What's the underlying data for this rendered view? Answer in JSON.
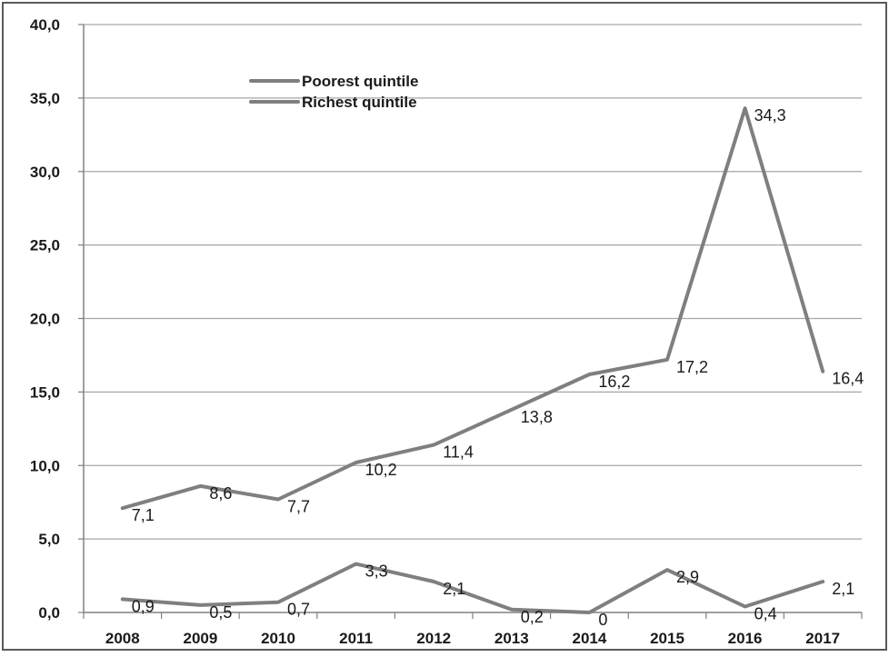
{
  "chart_data": {
    "type": "line",
    "categories": [
      "2008",
      "2009",
      "2010",
      "2011",
      "2012",
      "2013",
      "2014",
      "2015",
      "2016",
      "2017"
    ],
    "y_tick_labels": [
      "0,0",
      "5,0",
      "10,0",
      "15,0",
      "20,0",
      "25,0",
      "30,0",
      "35,0",
      "40,0"
    ],
    "ylim": [
      0,
      40
    ],
    "y_tick_step": 5,
    "grid": "horizontal",
    "legend_position": "top-left",
    "colors": {
      "line": "#7f7f7f",
      "grid": "#a6a6a6",
      "axis": "#808080",
      "border": "#5a5a5a"
    },
    "series": [
      {
        "name": "Poorest quintile",
        "values": [
          7.1,
          8.6,
          7.7,
          10.2,
          11.4,
          13.8,
          16.2,
          17.2,
          34.3,
          16.4
        ],
        "labels": [
          "7,1",
          "8,6",
          "7,7",
          "10,2",
          "11,4",
          "13,8",
          "16,2",
          "17,2",
          "34,3",
          "16,4"
        ]
      },
      {
        "name": "Richest quintile",
        "values": [
          0.9,
          0.5,
          0.7,
          3.3,
          2.1,
          0.2,
          0,
          2.9,
          0.4,
          2.1
        ],
        "labels": [
          "0,9",
          "0,5",
          "0,7",
          "3,3",
          "2,1",
          "0,2",
          "0",
          "2,9",
          "0,4",
          "2,1"
        ]
      }
    ]
  }
}
